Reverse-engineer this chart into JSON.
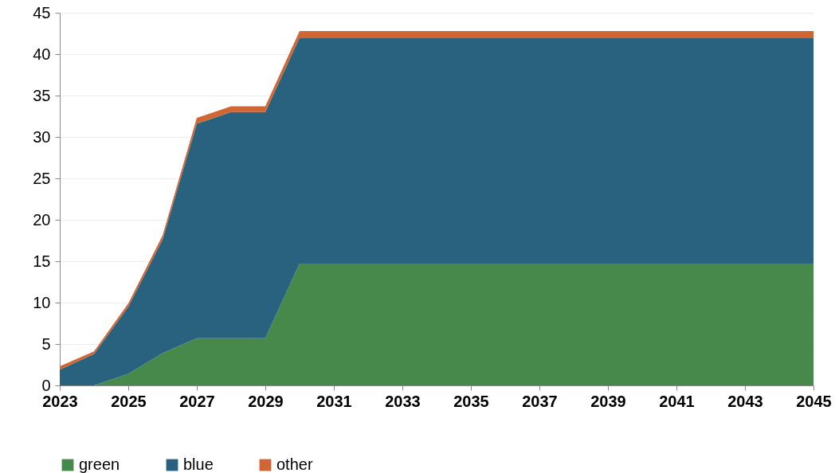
{
  "chart_data": {
    "type": "area",
    "stacked": true,
    "x": [
      2023,
      2024,
      2025,
      2026,
      2027,
      2028,
      2029,
      2030,
      2031,
      2032,
      2033,
      2034,
      2035,
      2036,
      2037,
      2038,
      2039,
      2040,
      2041,
      2042,
      2043,
      2044,
      2045
    ],
    "series": [
      {
        "name": "green",
        "color": "#47894a",
        "values": [
          0,
          0,
          1.4,
          3.9,
          5.7,
          5.7,
          5.7,
          14.7,
          14.7,
          14.7,
          14.7,
          14.7,
          14.7,
          14.7,
          14.7,
          14.7,
          14.7,
          14.7,
          14.7,
          14.7,
          14.7,
          14.7,
          14.7
        ]
      },
      {
        "name": "blue",
        "color": "#28627e",
        "values": [
          1.9,
          3.8,
          8.1,
          13.7,
          25.9,
          27.3,
          27.3,
          27.3,
          27.3,
          27.3,
          27.3,
          27.3,
          27.3,
          27.3,
          27.3,
          27.3,
          27.3,
          27.3,
          27.3,
          27.3,
          27.3,
          27.3,
          27.3
        ]
      },
      {
        "name": "other",
        "color": "#d06634",
        "values": [
          0.4,
          0.3,
          0.4,
          0.5,
          0.7,
          0.7,
          0.7,
          0.8,
          0.8,
          0.8,
          0.8,
          0.8,
          0.8,
          0.8,
          0.8,
          0.8,
          0.8,
          0.8,
          0.8,
          0.8,
          0.8,
          0.8,
          0.8
        ]
      }
    ],
    "xlim": [
      2023,
      2045
    ],
    "xticks": [
      2023,
      2025,
      2027,
      2029,
      2031,
      2033,
      2035,
      2037,
      2039,
      2041,
      2043,
      2045
    ],
    "ylim": [
      0,
      45
    ],
    "yticks": [
      0,
      5,
      10,
      15,
      20,
      25,
      30,
      35,
      40,
      45
    ],
    "grid": "y",
    "legend": "bottom"
  }
}
